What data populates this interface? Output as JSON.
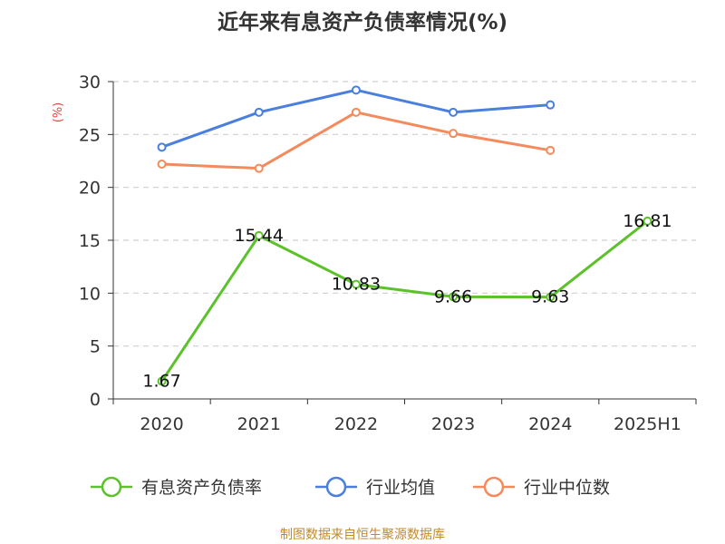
{
  "chart_data": {
    "type": "line",
    "title": "近年来有息资产负债率情况(%)",
    "ylabel": "(%)",
    "xlabel": "",
    "categories": [
      "2020",
      "2021",
      "2022",
      "2023",
      "2024",
      "2025H1"
    ],
    "ylim": [
      0,
      30
    ],
    "yticks": [
      0,
      5,
      10,
      15,
      20,
      25,
      30
    ],
    "grid": true,
    "legend_position": "bottom",
    "series": [
      {
        "name": "有息资产负债率",
        "color": "#5cc12b",
        "values": [
          1.67,
          15.44,
          10.83,
          9.66,
          9.63,
          16.81
        ],
        "labels": [
          "1.67",
          "15.44",
          "10.83",
          "9.66",
          "9.63",
          "16.81"
        ]
      },
      {
        "name": "行业均值",
        "color": "#4a7fe0",
        "values": [
          23.8,
          27.1,
          29.2,
          27.1,
          27.8,
          null
        ]
      },
      {
        "name": "行业中位数",
        "color": "#f58a5c",
        "values": [
          22.2,
          21.8,
          27.1,
          25.1,
          23.5,
          null
        ]
      }
    ],
    "source": "制图数据来自恒生聚源数据库"
  }
}
